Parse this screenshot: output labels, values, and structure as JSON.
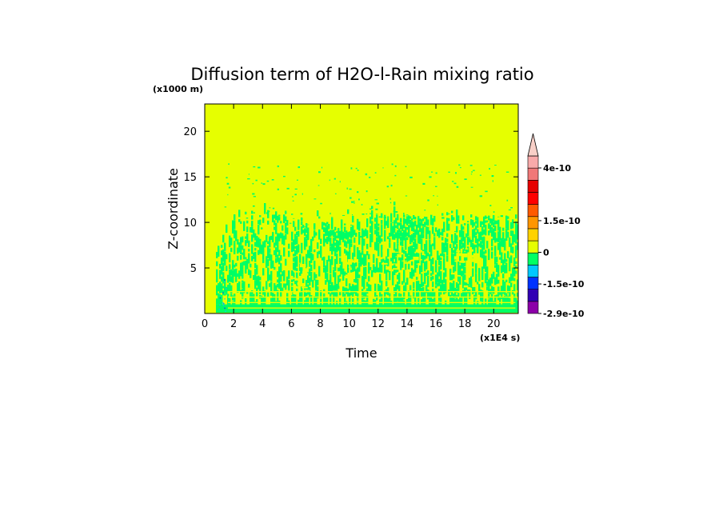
{
  "chart_data": {
    "type": "heatmap",
    "title": "Diffusion term of H2O-l-Rain mixing ratio",
    "xlabel": "Time",
    "ylabel": "Z-coordinate",
    "x_unit": "(x1E4 s)",
    "y_unit": "(x1000 m)",
    "xlim": [
      0,
      21.7
    ],
    "ylim": [
      0,
      23
    ],
    "x_ticks": [
      0,
      2,
      4,
      6,
      8,
      10,
      12,
      14,
      16,
      18,
      20
    ],
    "y_ticks": [
      5,
      10,
      15,
      20
    ],
    "background_value": 0,
    "colorbar": {
      "levels": [
        {
          "color": "#8c00a8"
        },
        {
          "color": "#3200b4"
        },
        {
          "color": "#0032ff"
        },
        {
          "color": "#00c8ff"
        },
        {
          "color": "#00ff64"
        },
        {
          "color": "#e6ff00"
        },
        {
          "color": "#ffd200"
        },
        {
          "color": "#ff9600"
        },
        {
          "color": "#ff5a00"
        },
        {
          "color": "#ff0000"
        },
        {
          "color": "#e60000"
        },
        {
          "color": "#f07878"
        },
        {
          "color": "#f8aaaa"
        }
      ],
      "extend_top_color": "#f8d0c8",
      "tick_labels": [
        {
          "label": "4e-10",
          "value": 4e-10
        },
        {
          "label": "1.5e-10",
          "value": 1.5e-10
        },
        {
          "label": "0",
          "value": 0
        },
        {
          "label": "-1.5e-10",
          "value": -1.5e-10
        },
        {
          "label": "-2.9e-10",
          "value": -2.9e-10
        }
      ]
    }
  }
}
